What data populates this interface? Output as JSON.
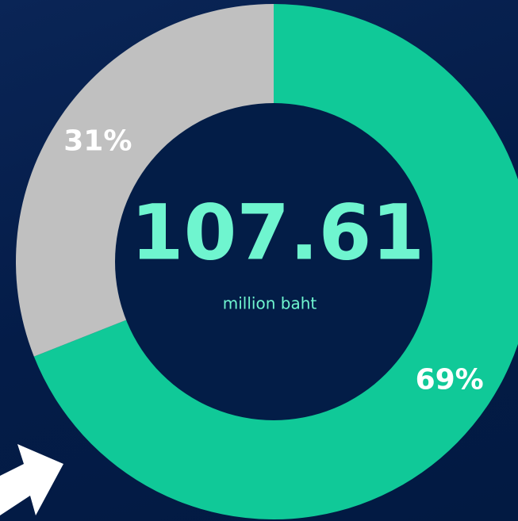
{
  "chart_data": {
    "type": "pie",
    "categories": [
      null,
      null
    ],
    "series": [
      {
        "name": null,
        "values": [
          69,
          31
        ],
        "value_labels": [
          "69%",
          "31%"
        ],
        "colors": [
          "#10c998",
          "#c0c0c0"
        ]
      }
    ],
    "center_text": "107.61",
    "center_subtitle": "million baht"
  }
}
